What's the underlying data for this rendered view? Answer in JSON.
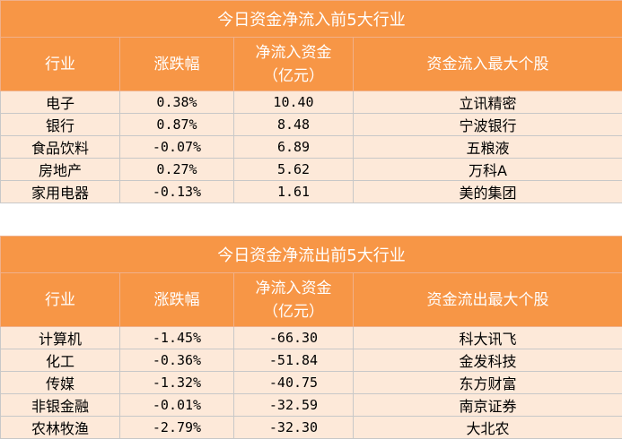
{
  "inflow": {
    "title": "今日资金净流入前5大行业",
    "headers": [
      "行业",
      "涨跌幅",
      "净流入资金",
      "（亿元）",
      "资金流入最大个股"
    ],
    "rows": [
      {
        "industry": "电子",
        "change": "0.38%",
        "amount": "10.40",
        "top_stock": "立讯精密"
      },
      {
        "industry": "银行",
        "change": "0.87%",
        "amount": "8.48",
        "top_stock": "宁波银行"
      },
      {
        "industry": "食品饮料",
        "change": "-0.07%",
        "amount": "6.89",
        "top_stock": "五粮液"
      },
      {
        "industry": "房地产",
        "change": "0.27%",
        "amount": "5.62",
        "top_stock": "万科A"
      },
      {
        "industry": "家用电器",
        "change": "-0.13%",
        "amount": "1.61",
        "top_stock": "美的集团"
      }
    ]
  },
  "outflow": {
    "title": "今日资金净流出前5大行业",
    "headers": [
      "行业",
      "涨跌幅",
      "净流入资金",
      "（亿元）",
      "资金流出最大个股"
    ],
    "rows": [
      {
        "industry": "计算机",
        "change": "-1.45%",
        "amount": "-66.30",
        "top_stock": "科大讯飞"
      },
      {
        "industry": "化工",
        "change": "-0.36%",
        "amount": "-51.84",
        "top_stock": "金发科技"
      },
      {
        "industry": "传媒",
        "change": "-1.32%",
        "amount": "-40.75",
        "top_stock": "东方财富"
      },
      {
        "industry": "非银金融",
        "change": "-0.01%",
        "amount": "-32.59",
        "top_stock": "南京证券"
      },
      {
        "industry": "农林牧渔",
        "change": "-2.79%",
        "amount": "-32.30",
        "top_stock": "大北农"
      }
    ]
  },
  "colors": {
    "header_bg": "#f79646",
    "row_bg": "#fde9d9"
  }
}
